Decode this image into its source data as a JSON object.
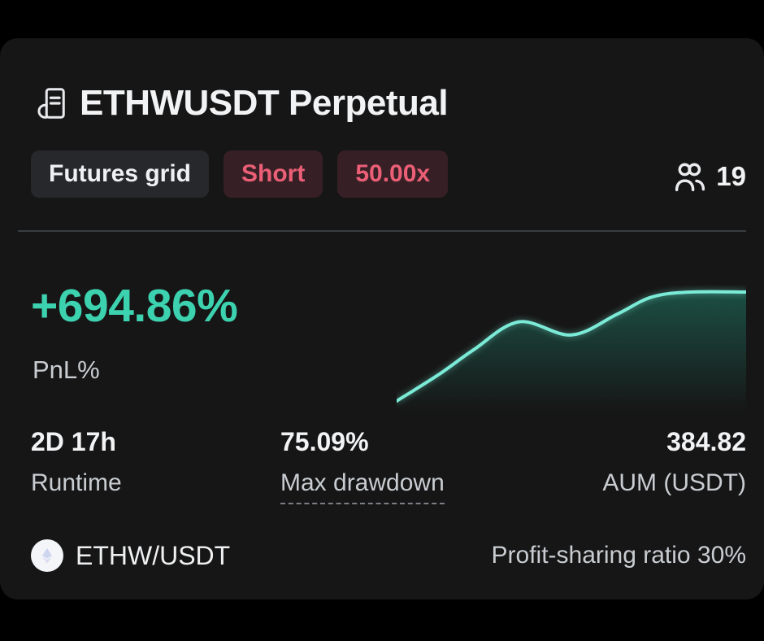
{
  "colors": {
    "card_bg": "#161616",
    "accent_teal": "#3DD2AF",
    "chart_line": "#7BEBD7",
    "chart_fill": "#2AD2AE",
    "tag_red_text": "#EA5F75",
    "tag_red_bg": "#371F26",
    "tag_gray_bg": "#26282B",
    "divider": "#3A3D40",
    "text_primary": "#F2F3F5",
    "text_secondary": "#C9CDD2"
  },
  "header": {
    "title": "ETHWUSDT Perpetual",
    "tags": {
      "type": "Futures grid",
      "direction": "Short",
      "leverage": "50.00x"
    },
    "copiers": "19"
  },
  "pnl": {
    "value": "+694.86%",
    "label": "PnL%"
  },
  "stats": {
    "runtime": {
      "value": "2D 17h",
      "label": "Runtime"
    },
    "drawdown": {
      "value": "75.09%",
      "label": "Max drawdown"
    },
    "aum": {
      "value": "384.82",
      "label": "AUM (USDT)"
    }
  },
  "footer": {
    "pair": "ETHW/USDT",
    "profit_sharing": "Profit-sharing ratio 30%"
  },
  "chart_data": {
    "type": "area",
    "title": "",
    "xlabel": "",
    "ylabel": "PnL%",
    "x": [
      0,
      12,
      22,
      35,
      50,
      63,
      73,
      84,
      100
    ],
    "series": [
      {
        "name": "PnL%",
        "values": [
          0,
          168,
          326,
          505,
          421,
          553,
          663,
          694.86,
          694.86
        ]
      }
    ],
    "ylim": [
      0,
      695
    ],
    "grid": false,
    "legend": false
  }
}
